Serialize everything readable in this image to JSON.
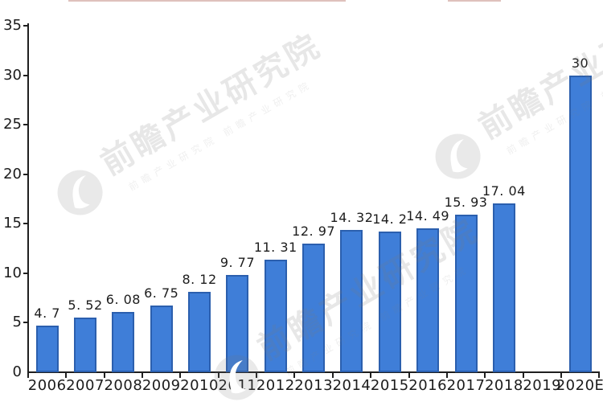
{
  "chart_data": {
    "type": "bar",
    "title": "",
    "xlabel": "",
    "ylabel": "",
    "categories": [
      "2006",
      "2007",
      "2008",
      "2009",
      "2010",
      "2011",
      "2012",
      "2013",
      "2014",
      "2015",
      "2016",
      "2017",
      "2018",
      "2019",
      "2020E"
    ],
    "values": [
      4.7,
      5.52,
      6.08,
      6.75,
      8.12,
      9.77,
      11.31,
      12.97,
      14.32,
      14.2,
      14.49,
      15.93,
      17.04,
      null,
      30
    ],
    "value_labels": [
      "4. 7",
      "5. 52",
      "6. 08",
      "6. 75",
      "8. 12",
      "9. 77",
      "11. 31",
      "12. 97",
      "14. 32",
      "14. 2",
      "14. 49",
      "15. 93",
      "17. 04",
      "",
      "30"
    ],
    "y_ticks": [
      0,
      5,
      10,
      15,
      20,
      25,
      30,
      35
    ],
    "ylim": [
      0,
      35
    ],
    "grid": false,
    "legend": null,
    "colors": {
      "bar_fill": "#3f7ed8",
      "bar_border": "#2b5fae",
      "axis": "#1f1f1f",
      "text": "#1c1c1c"
    }
  },
  "watermark": {
    "text": "前瞻产业研究院",
    "subtext": "前瞻产业研究院  前瞻产业研究院",
    "text_color": "rgba(120,120,120,0.18)",
    "subtext_color": "rgba(130,130,130,0.13)",
    "logo_color": "rgba(120,120,120,0.16)"
  }
}
